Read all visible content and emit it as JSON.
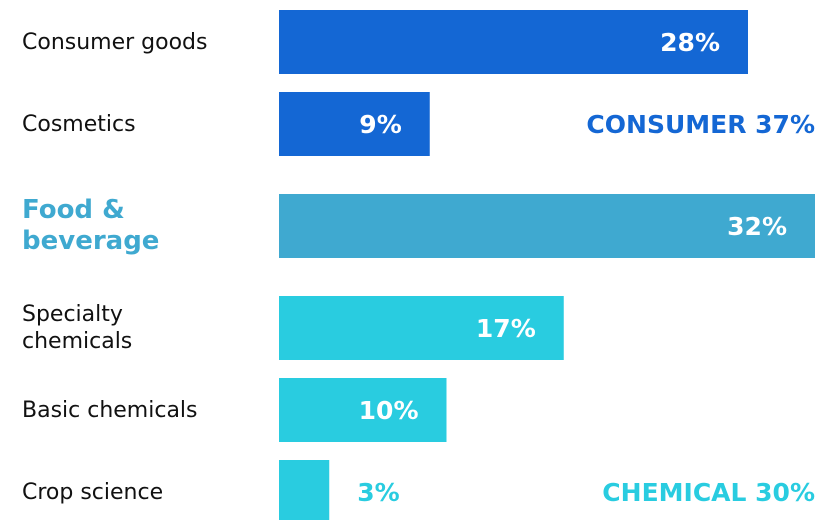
{
  "chart_data": {
    "type": "bar",
    "orientation": "horizontal",
    "categories": [
      "Consumer goods",
      "Cosmetics",
      "Food & beverage",
      "Specialty chemicals",
      "Basic chemicals",
      "Crop science"
    ],
    "values": [
      28,
      9,
      32,
      17,
      10,
      3
    ],
    "value_labels": [
      "28%",
      "9%",
      "32%",
      "17%",
      "10%",
      "3%"
    ],
    "colors": [
      "#1467d4",
      "#1467d4",
      "#3fa9d0",
      "#29cce0",
      "#29cce0",
      "#29cce0"
    ],
    "bold_categories": [
      false,
      false,
      true,
      false,
      false,
      false
    ],
    "annotations": [
      {
        "text": "CONSUMER 37%",
        "category": "Cosmetics",
        "color": "#1467d4"
      },
      {
        "text": "CHEMICAL 30%",
        "category": "Crop science",
        "color": "#29cce0"
      }
    ]
  }
}
